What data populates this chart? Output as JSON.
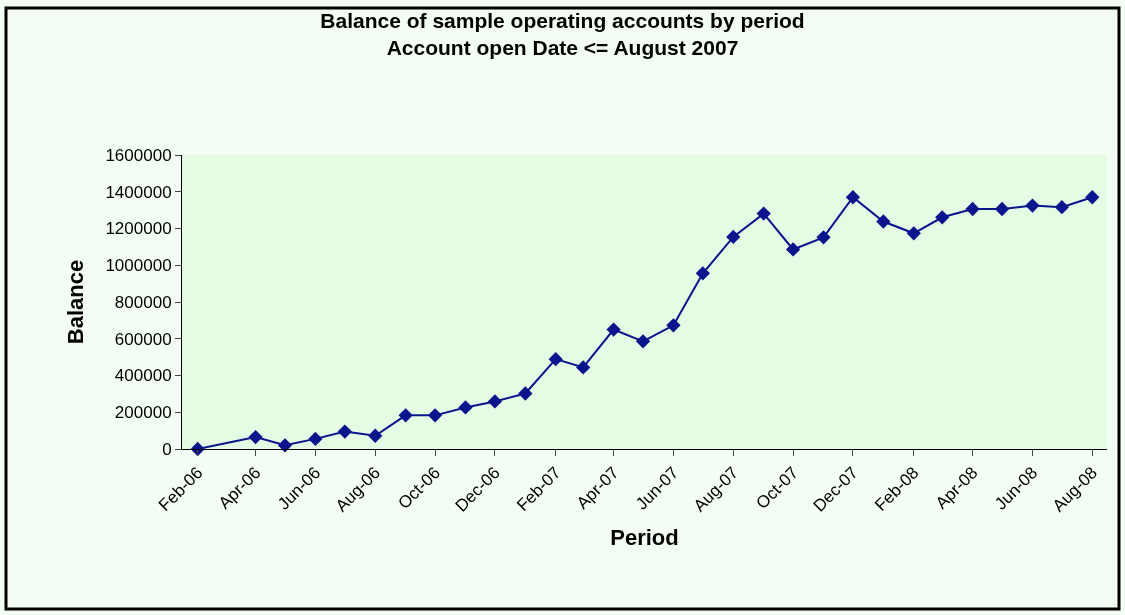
{
  "chart_data": {
    "type": "line",
    "title": "Balance of sample operating accounts by period",
    "subtitle": "Account open Date <= August 2007",
    "xlabel": "Period",
    "ylabel": "Balance",
    "x": [
      "2006-02",
      "2006-04",
      "2006-05",
      "2006-06",
      "2006-07",
      "2006-08",
      "2006-09",
      "2006-10",
      "2006-11",
      "2006-12",
      "2007-01",
      "2007-02",
      "2007-03",
      "2007-04",
      "2007-05",
      "2007-06",
      "2007-07",
      "2007-08",
      "2007-09",
      "2007-10",
      "2007-11",
      "2007-12",
      "2008-01",
      "2008-02",
      "2008-03",
      "2008-04",
      "2008-05",
      "2008-06",
      "2008-07",
      "2008-08"
    ],
    "series": [
      {
        "color": "#0a148c",
        "values": [
          0,
          65000,
          20000,
          55000,
          95000,
          72000,
          183000,
          183000,
          226000,
          259000,
          302000,
          489000,
          444000,
          650000,
          586000,
          673000,
          956000,
          1154000,
          1281000,
          1086000,
          1152000,
          1370000,
          1238000,
          1174000,
          1261000,
          1306000,
          1306000,
          1325000,
          1316000,
          1370000
        ]
      }
    ],
    "xlim": [
      "2006-01-16",
      "2008-08-16"
    ],
    "xticks": [
      {
        "value": "2006-02",
        "label": "Feb-06"
      },
      {
        "value": "2006-04",
        "label": "Apr-06"
      },
      {
        "value": "2006-06",
        "label": "Jun-06"
      },
      {
        "value": "2006-08",
        "label": "Aug-06"
      },
      {
        "value": "2006-10",
        "label": "Oct-06"
      },
      {
        "value": "2006-12",
        "label": "Dec-06"
      },
      {
        "value": "2007-02",
        "label": "Feb-07"
      },
      {
        "value": "2007-04",
        "label": "Apr-07"
      },
      {
        "value": "2007-06",
        "label": "Jun-07"
      },
      {
        "value": "2007-08",
        "label": "Aug-07"
      },
      {
        "value": "2007-10",
        "label": "Oct-07"
      },
      {
        "value": "2007-12",
        "label": "Dec-07"
      },
      {
        "value": "2008-02",
        "label": "Feb-08"
      },
      {
        "value": "2008-04",
        "label": "Apr-08"
      },
      {
        "value": "2008-06",
        "label": "Jun-08"
      },
      {
        "value": "2008-08",
        "label": "Aug-08"
      }
    ],
    "ylim": [
      0,
      1600000
    ],
    "yticks": [
      0,
      200000,
      400000,
      600000,
      800000,
      1000000,
      1200000,
      1400000,
      1600000
    ],
    "marker": "diamond",
    "line_style": "solid",
    "grid": false
  }
}
